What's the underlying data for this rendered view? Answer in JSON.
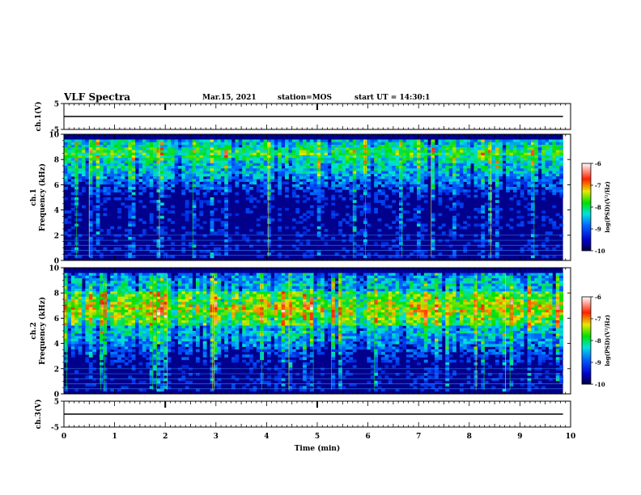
{
  "header": {
    "title": "VLF Spectra",
    "date": "Mar.15, 2021",
    "station": "station=MOS",
    "start_ut": "start UT =  14:30:1"
  },
  "chart_data": [
    {
      "type": "line",
      "name": "ch1-waveform",
      "ylabel": "ch.1(V)",
      "ylim": [
        -5,
        5
      ],
      "yticks": [
        "5",
        "-5"
      ],
      "x": [
        0,
        9.85
      ],
      "y": [
        0,
        0
      ],
      "xlim": [
        0,
        10
      ]
    },
    {
      "type": "heatmap",
      "name": "ch1-spectrogram",
      "ylabel": "ch.1\nFrequency (kHz)",
      "ylim": [
        0,
        10
      ],
      "yticks": [
        "0",
        "2",
        "4",
        "6",
        "8",
        "10"
      ],
      "xlim": [
        0,
        10
      ],
      "data_extent_min": 9.85,
      "colorbar": {
        "label": "log(PSD)(V²/Hz)",
        "range": [
          -10,
          -6
        ],
        "ticks": [
          "-6",
          "-7",
          "-8",
          "-9",
          "-10"
        ]
      },
      "dominant_band_khz": [
        7.5,
        9.5
      ]
    },
    {
      "type": "heatmap",
      "name": "ch2-spectrogram",
      "ylabel": "ch.2\nFrequency (kHz)",
      "ylim": [
        0,
        10
      ],
      "yticks": [
        "0",
        "2",
        "4",
        "6",
        "8",
        "10"
      ],
      "xlim": [
        0,
        10
      ],
      "data_extent_min": 9.85,
      "colorbar": {
        "label": "log(PSD)(V²/Hz)",
        "range": [
          -10,
          -6
        ],
        "ticks": [
          "-6",
          "-7",
          "-8",
          "-9",
          "-10"
        ]
      },
      "dominant_band_khz": [
        5.0,
        8.5
      ]
    },
    {
      "type": "line",
      "name": "ch3-waveform",
      "ylabel": "ch.3(V)",
      "ylim": [
        -5,
        5
      ],
      "yticks": [
        "5",
        "-5"
      ],
      "x": [
        0,
        9.85
      ],
      "y": [
        0,
        0
      ],
      "xlim": [
        0,
        10
      ],
      "xlabel": "Time (min)",
      "xticks": [
        "0",
        "1",
        "2",
        "3",
        "4",
        "5",
        "6",
        "7",
        "8",
        "9",
        "10"
      ]
    }
  ]
}
